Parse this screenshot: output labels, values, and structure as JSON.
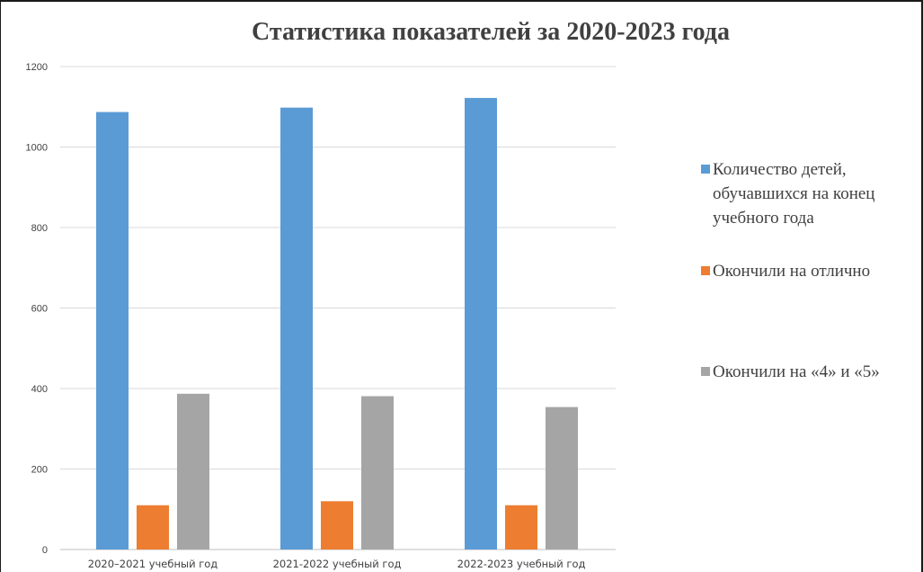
{
  "chart_data": {
    "type": "bar",
    "title": "Статистика показателей за 2020-2023 года",
    "xlabel": "",
    "ylabel": "",
    "ylim": [
      0,
      1200
    ],
    "yticks": [
      "0",
      "200",
      "400",
      "600",
      "800",
      "1000",
      "1200"
    ],
    "grid": true,
    "legend_position": "right",
    "categories": [
      "2020–2021 учебный год",
      "2021-2022 учебный год",
      "2022-2023 учебный год"
    ],
    "series": [
      {
        "name": "Количество детей, обучавшихся на конец учебного года",
        "legend_lines": [
          "Количество детей,",
          "обучавшихся на конец",
          "учебного года"
        ],
        "color": "#5b9bd5",
        "values": [
          1087,
          1098,
          1122
        ]
      },
      {
        "name": "Окончили на отлично",
        "legend_lines": [
          "Окончили на отлично"
        ],
        "color": "#ed7d31",
        "values": [
          110,
          120,
          110
        ]
      },
      {
        "name": "Окончили на «4» и «5»",
        "legend_lines": [
          "Окончили на «4» и «5»"
        ],
        "color": "#a5a5a5",
        "values": [
          387,
          381,
          354
        ]
      }
    ]
  }
}
